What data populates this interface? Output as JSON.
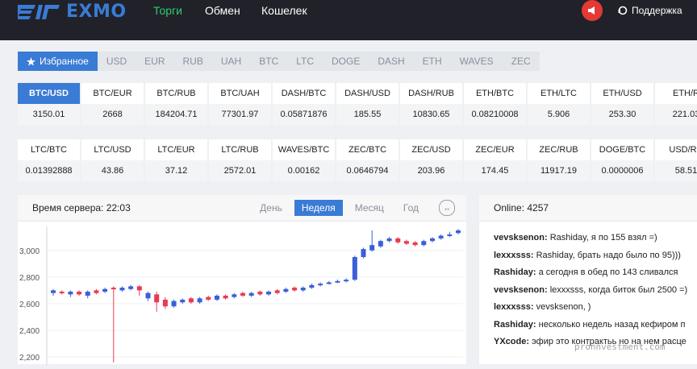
{
  "header": {
    "logo_text": "EXMO",
    "nav": [
      "Торги",
      "Обмен",
      "Кошелек"
    ],
    "support_label": "Поддержка"
  },
  "currency_tabs": [
    {
      "label": "Избранное",
      "icon": "star-icon",
      "active": true
    },
    {
      "label": "USD"
    },
    {
      "label": "EUR"
    },
    {
      "label": "RUB"
    },
    {
      "label": "UAH"
    },
    {
      "label": "BTC"
    },
    {
      "label": "LTC"
    },
    {
      "label": "DOGE"
    },
    {
      "label": "DASH"
    },
    {
      "label": "ETH"
    },
    {
      "label": "WAVES"
    },
    {
      "label": "ZEC"
    }
  ],
  "pairs_row1": [
    {
      "pair": "BTC/USD",
      "price": "3150.01",
      "active": true
    },
    {
      "pair": "BTC/EUR",
      "price": "2668"
    },
    {
      "pair": "BTC/RUB",
      "price": "184204.71"
    },
    {
      "pair": "BTC/UAH",
      "price": "77301.97"
    },
    {
      "pair": "DASH/BTC",
      "price": "0.05871876"
    },
    {
      "pair": "DASH/USD",
      "price": "185.55"
    },
    {
      "pair": "DASH/RUB",
      "price": "10830.65"
    },
    {
      "pair": "ETH/BTC",
      "price": "0.08210008"
    },
    {
      "pair": "ETH/LTC",
      "price": "5.906"
    },
    {
      "pair": "ETH/USD",
      "price": "253.30"
    },
    {
      "pair": "ETH/R",
      "price": "221.03"
    }
  ],
  "pairs_row2": [
    {
      "pair": "LTC/BTC",
      "price": "0.01392888"
    },
    {
      "pair": "LTC/USD",
      "price": "43.86"
    },
    {
      "pair": "LTC/EUR",
      "price": "37.12"
    },
    {
      "pair": "LTC/RUB",
      "price": "2572.01"
    },
    {
      "pair": "WAVES/BTC",
      "price": "0.00162"
    },
    {
      "pair": "ZEC/BTC",
      "price": "0.0646794"
    },
    {
      "pair": "ZEC/USD",
      "price": "203.96"
    },
    {
      "pair": "ZEC/EUR",
      "price": "174.45"
    },
    {
      "pair": "ZEC/RUB",
      "price": "11917.19"
    },
    {
      "pair": "DOGE/BTC",
      "price": "0.0000006"
    },
    {
      "pair": "USD/RU",
      "price": "58.51"
    }
  ],
  "chart": {
    "server_time_label": "Время сервера: 22:03",
    "periods": [
      {
        "label": "День"
      },
      {
        "label": "Неделя",
        "active": true
      },
      {
        "label": "Месяц"
      },
      {
        "label": "Год"
      }
    ],
    "expand_icon_text": "↔"
  },
  "chart_data": {
    "type": "candlestick",
    "y_ticks": [
      "3,000",
      "2,800",
      "2,600",
      "2,400",
      "2,200"
    ],
    "y_tick_values": [
      3000,
      2800,
      2600,
      2400,
      2200
    ],
    "ylim": [
      2140,
      3180
    ],
    "up_color": "#3a5fd8",
    "down_color": "#e83a52",
    "candles": [
      {
        "o": 2680,
        "c": 2700,
        "h": 2710,
        "l": 2660
      },
      {
        "o": 2690,
        "c": 2680,
        "h": 2700,
        "l": 2670
      },
      {
        "o": 2670,
        "c": 2690,
        "h": 2700,
        "l": 2650
      },
      {
        "o": 2690,
        "c": 2670,
        "h": 2700,
        "l": 2660
      },
      {
        "o": 2660,
        "c": 2690,
        "h": 2700,
        "l": 2640
      },
      {
        "o": 2700,
        "c": 2680,
        "h": 2710,
        "l": 2670
      },
      {
        "o": 2690,
        "c": 2710,
        "h": 2720,
        "l": 2680
      },
      {
        "o": 2720,
        "c": 2710,
        "h": 2730,
        "l": 2160
      },
      {
        "o": 2700,
        "c": 2720,
        "h": 2730,
        "l": 2690
      },
      {
        "o": 2710,
        "c": 2730,
        "h": 2740,
        "l": 2700
      },
      {
        "o": 2730,
        "c": 2700,
        "h": 2740,
        "l": 2660
      },
      {
        "o": 2640,
        "c": 2680,
        "h": 2690,
        "l": 2620
      },
      {
        "o": 2670,
        "c": 2610,
        "h": 2690,
        "l": 2540
      },
      {
        "o": 2630,
        "c": 2580,
        "h": 2650,
        "l": 2560
      },
      {
        "o": 2580,
        "c": 2620,
        "h": 2630,
        "l": 2570
      },
      {
        "o": 2610,
        "c": 2630,
        "h": 2640,
        "l": 2600
      },
      {
        "o": 2640,
        "c": 2610,
        "h": 2650,
        "l": 2600
      },
      {
        "o": 2610,
        "c": 2640,
        "h": 2650,
        "l": 2600
      },
      {
        "o": 2650,
        "c": 2630,
        "h": 2660,
        "l": 2620
      },
      {
        "o": 2630,
        "c": 2660,
        "h": 2670,
        "l": 2620
      },
      {
        "o": 2660,
        "c": 2640,
        "h": 2670,
        "l": 2630
      },
      {
        "o": 2650,
        "c": 2670,
        "h": 2680,
        "l": 2640
      },
      {
        "o": 2680,
        "c": 2660,
        "h": 2690,
        "l": 2650
      },
      {
        "o": 2660,
        "c": 2680,
        "h": 2690,
        "l": 2650
      },
      {
        "o": 2690,
        "c": 2670,
        "h": 2700,
        "l": 2660
      },
      {
        "o": 2670,
        "c": 2690,
        "h": 2700,
        "l": 2660
      },
      {
        "o": 2700,
        "c": 2680,
        "h": 2710,
        "l": 2670
      },
      {
        "o": 2690,
        "c": 2710,
        "h": 2720,
        "l": 2680
      },
      {
        "o": 2720,
        "c": 2700,
        "h": 2730,
        "l": 2690
      },
      {
        "o": 2700,
        "c": 2720,
        "h": 2730,
        "l": 2690
      },
      {
        "o": 2720,
        "c": 2740,
        "h": 2750,
        "l": 2710
      },
      {
        "o": 2740,
        "c": 2750,
        "h": 2760,
        "l": 2730
      },
      {
        "o": 2750,
        "c": 2760,
        "h": 2770,
        "l": 2745
      },
      {
        "o": 2760,
        "c": 2770,
        "h": 2780,
        "l": 2755
      },
      {
        "o": 2770,
        "c": 2780,
        "h": 2790,
        "l": 2760
      },
      {
        "o": 2780,
        "c": 2950,
        "h": 2960,
        "l": 2770
      },
      {
        "o": 2950,
        "c": 3010,
        "h": 3020,
        "l": 2940
      },
      {
        "o": 3000,
        "c": 3040,
        "h": 3150,
        "l": 2990
      },
      {
        "o": 3030,
        "c": 3070,
        "h": 3080,
        "l": 3020
      },
      {
        "o": 3070,
        "c": 3090,
        "h": 3100,
        "l": 3060
      },
      {
        "o": 3090,
        "c": 3060,
        "h": 3100,
        "l": 3050
      },
      {
        "o": 3070,
        "c": 3050,
        "h": 3080,
        "l": 3040
      },
      {
        "o": 3060,
        "c": 3040,
        "h": 3070,
        "l": 3030
      },
      {
        "o": 3040,
        "c": 3070,
        "h": 3080,
        "l": 3030
      },
      {
        "o": 3070,
        "c": 3090,
        "h": 3100,
        "l": 3060
      },
      {
        "o": 3090,
        "c": 3110,
        "h": 3120,
        "l": 3080
      },
      {
        "o": 3110,
        "c": 3120,
        "h": 3140,
        "l": 3100
      },
      {
        "o": 3130,
        "c": 3150,
        "h": 3160,
        "l": 3120
      }
    ]
  },
  "chat": {
    "online_label": "Online: 4257",
    "messages": [
      {
        "user": "vevsksenon:",
        "text": " Rashiday, я по 155 взял =)"
      },
      {
        "user": "lexxxsss:",
        "text": " Rashiday, брать надо было по 95)))"
      },
      {
        "user": "Rashiday:",
        "text": " а сегодня в обед по 143 сливался"
      },
      {
        "user": "vevsksenon:",
        "text": " lexxxsss, когда биток был 2500 =)"
      },
      {
        "user": "lexxxsss:",
        "text": " vevsksenon, )"
      },
      {
        "user": "Rashiday:",
        "text": " несколько недель назад кефиром п"
      },
      {
        "user": "YXcode:",
        "text": " эфир это контрактьь но на нем расце"
      }
    ]
  },
  "watermark": "pronnvestment.com"
}
